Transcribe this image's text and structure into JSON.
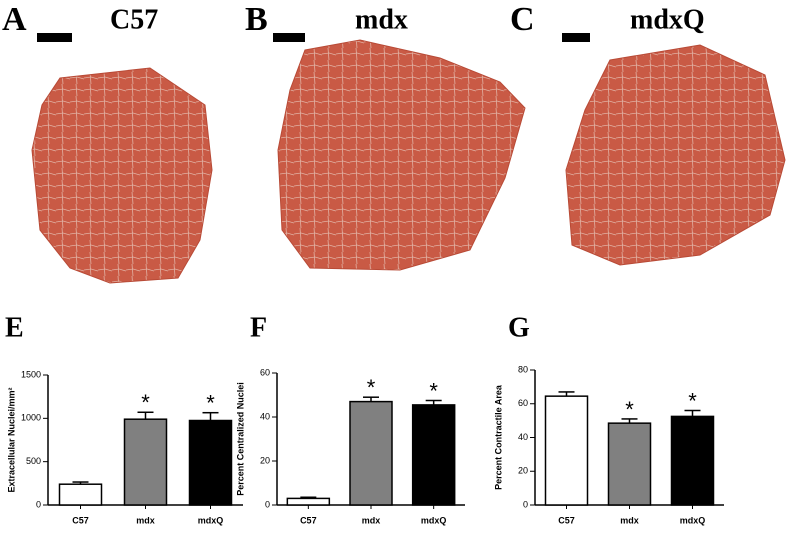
{
  "panels": [
    {
      "letter": "A",
      "label": "C57"
    },
    {
      "letter": "B",
      "label": "mdx"
    },
    {
      "letter": "C",
      "label": "mdxQ"
    }
  ],
  "chart_data": [
    {
      "type": "bar",
      "panel_label": "E",
      "ylabel": "Extracellular Nuclei/mm²",
      "categories": [
        "C57",
        "mdx",
        "mdxQ"
      ],
      "values": [
        240,
        990,
        975
      ],
      "errors": [
        25,
        80,
        90
      ],
      "colors": [
        "#ffffff",
        "#808080",
        "#000000"
      ],
      "ylim": [
        0,
        1500
      ],
      "yticks": [
        0,
        500,
        1000,
        1500
      ],
      "annotations": [
        {
          "category": "mdx",
          "text": "*"
        },
        {
          "category": "mdxQ",
          "text": "*"
        }
      ]
    },
    {
      "type": "bar",
      "panel_label": "F",
      "ylabel": "Percent Centralized Nuclei",
      "categories": [
        "C57",
        "mdx",
        "mdxQ"
      ],
      "values": [
        3,
        47,
        45.5
      ],
      "errors": [
        0.5,
        2,
        2
      ],
      "colors": [
        "#ffffff",
        "#808080",
        "#000000"
      ],
      "ylim": [
        0,
        60
      ],
      "yticks": [
        0,
        20,
        40,
        60
      ],
      "annotations": [
        {
          "category": "mdx",
          "text": "*"
        },
        {
          "category": "mdxQ",
          "text": "*"
        }
      ]
    },
    {
      "type": "bar",
      "panel_label": "G",
      "ylabel": "Percent Contractile Area",
      "categories": [
        "C57",
        "mdx",
        "mdxQ"
      ],
      "values": [
        64.5,
        48.5,
        52.5
      ],
      "errors": [
        2.5,
        2.5,
        3.5
      ],
      "colors": [
        "#ffffff",
        "#808080",
        "#000000"
      ],
      "ylim": [
        0,
        80
      ],
      "yticks": [
        0,
        20,
        40,
        60,
        80
      ],
      "annotations": [
        {
          "category": "mdx",
          "text": "*"
        },
        {
          "category": "mdxQ",
          "text": "*"
        }
      ]
    }
  ]
}
